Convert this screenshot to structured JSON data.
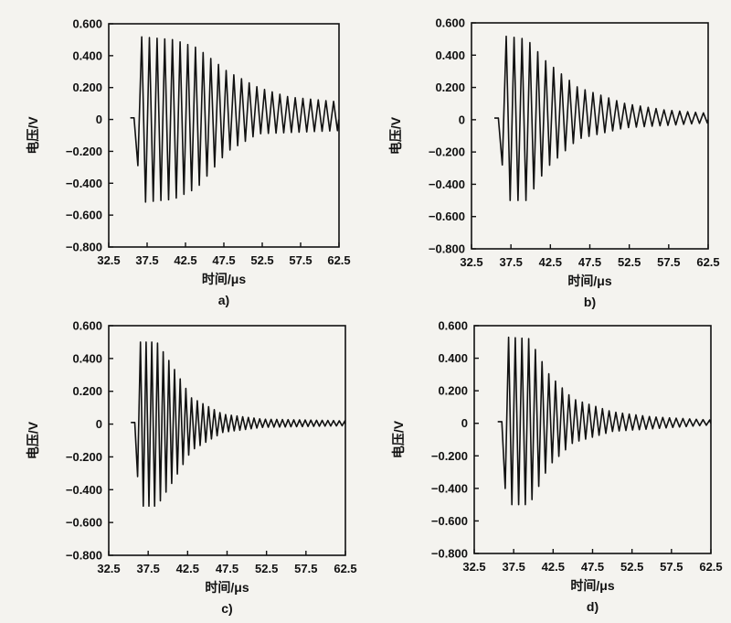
{
  "figure": {
    "colors": {
      "background": "#f4f3ef",
      "line": "#111111",
      "axes": "#111111"
    }
  },
  "chart_data": [
    {
      "type": "line",
      "panel_label": "a)",
      "xlabel": "时间/μs",
      "ylabel": "电压/V",
      "xlim": [
        32.5,
        62.5
      ],
      "ylim": [
        -0.8,
        0.6
      ],
      "xticks": [
        "32.5",
        "37.5",
        "42.5",
        "47.5",
        "52.5",
        "57.5",
        "62.5"
      ],
      "yticks": [
        "0.600",
        "0.400",
        "0.200",
        "0",
        "−0.200",
        "−0.400",
        "−0.600",
        "−0.800"
      ],
      "grid": false,
      "series": [
        {
          "signal": {
            "start": 35.8,
            "period": 1.0,
            "amplitude_envelope": [
              [
                36.3,
                0.52
              ],
              [
                41.0,
                0.5
              ],
              [
                44.0,
                0.45
              ],
              [
                48.0,
                0.3
              ],
              [
                52.0,
                0.2
              ],
              [
                56.0,
                0.14
              ],
              [
                62.5,
                0.11
              ]
            ],
            "negative_envelope": [
              [
                36.3,
                -0.29
              ],
              [
                36.8,
                -0.52
              ],
              [
                41.0,
                -0.5
              ],
              [
                44.0,
                -0.43
              ],
              [
                48.0,
                -0.2
              ],
              [
                52.0,
                -0.09
              ],
              [
                62.5,
                -0.07
              ]
            ]
          }
        }
      ]
    },
    {
      "type": "line",
      "panel_label": "b)",
      "xlabel": "时间/μs",
      "ylabel": "电压/V",
      "xlim": [
        32.5,
        62.5
      ],
      "ylim": [
        -0.8,
        0.6
      ],
      "xticks": [
        "32.5",
        "37.5",
        "42.5",
        "47.5",
        "52.5",
        "57.5",
        "62.5"
      ],
      "yticks": [
        "0.600",
        "0.400",
        "0.200",
        "0",
        "−0.200",
        "−0.400",
        "−0.600",
        "−0.800"
      ],
      "grid": false,
      "series": [
        {
          "signal": {
            "start": 35.9,
            "period": 1.0,
            "amplitude_envelope": [
              [
                36.4,
                0.52
              ],
              [
                39.5,
                0.5
              ],
              [
                42.0,
                0.36
              ],
              [
                46.0,
                0.2
              ],
              [
                52.0,
                0.1
              ],
              [
                57.0,
                0.06
              ],
              [
                62.5,
                0.04
              ]
            ],
            "negative_envelope": [
              [
                36.4,
                -0.28
              ],
              [
                36.9,
                -0.5
              ],
              [
                39.5,
                -0.5
              ],
              [
                42.0,
                -0.3
              ],
              [
                46.0,
                -0.12
              ],
              [
                52.0,
                -0.05
              ],
              [
                62.5,
                -0.02
              ]
            ]
          }
        }
      ]
    },
    {
      "type": "line",
      "panel_label": "c)",
      "xlabel": "时间/μs",
      "ylabel": "电压/V",
      "xlim": [
        32.5,
        62.5
      ],
      "ylim": [
        -0.8,
        0.6
      ],
      "xticks": [
        "32.5",
        "37.5",
        "42.5",
        "47.5",
        "52.5",
        "57.5",
        "62.5"
      ],
      "yticks": [
        "0.600",
        "0.400",
        "0.200",
        "0",
        "−0.200",
        "−0.400",
        "−0.600",
        "−0.800"
      ],
      "grid": false,
      "series": [
        {
          "signal": {
            "start": 35.8,
            "period": 0.72,
            "amplitude_envelope": [
              [
                36.3,
                0.5
              ],
              [
                38.6,
                0.5
              ],
              [
                40.5,
                0.36
              ],
              [
                43.0,
                0.16
              ],
              [
                47.0,
                0.06
              ],
              [
                52.0,
                0.03
              ],
              [
                62.5,
                0.02
              ]
            ],
            "negative_envelope": [
              [
                36.3,
                -0.32
              ],
              [
                36.8,
                -0.5
              ],
              [
                38.6,
                -0.5
              ],
              [
                40.5,
                -0.36
              ],
              [
                43.0,
                -0.16
              ],
              [
                47.0,
                -0.05
              ],
              [
                52.0,
                -0.02
              ],
              [
                62.5,
                -0.01
              ]
            ]
          }
        }
      ]
    },
    {
      "type": "line",
      "panel_label": "d)",
      "xlabel": "时间/μs",
      "ylabel": "电压/V",
      "xlim": [
        32.5,
        62.5
      ],
      "ylim": [
        -0.8,
        0.6
      ],
      "xticks": [
        "32.5",
        "37.5",
        "42.5",
        "47.5",
        "52.5",
        "57.5",
        "62.5"
      ],
      "yticks": [
        "0.600",
        "0.400",
        "0.200",
        "0",
        "−0.200",
        "−0.400",
        "−0.600",
        "−0.800"
      ],
      "grid": false,
      "series": [
        {
          "signal": {
            "start": 36.0,
            "period": 0.85,
            "amplitude_envelope": [
              [
                36.5,
                0.53
              ],
              [
                39.5,
                0.52
              ],
              [
                42.0,
                0.3
              ],
              [
                45.0,
                0.15
              ],
              [
                50.0,
                0.07
              ],
              [
                55.0,
                0.04
              ],
              [
                62.5,
                0.02
              ]
            ],
            "negative_envelope": [
              [
                36.5,
                -0.4
              ],
              [
                37.0,
                -0.5
              ],
              [
                39.5,
                -0.5
              ],
              [
                42.0,
                -0.26
              ],
              [
                45.0,
                -0.12
              ],
              [
                50.0,
                -0.05
              ],
              [
                62.5,
                -0.01
              ]
            ]
          }
        }
      ]
    }
  ]
}
